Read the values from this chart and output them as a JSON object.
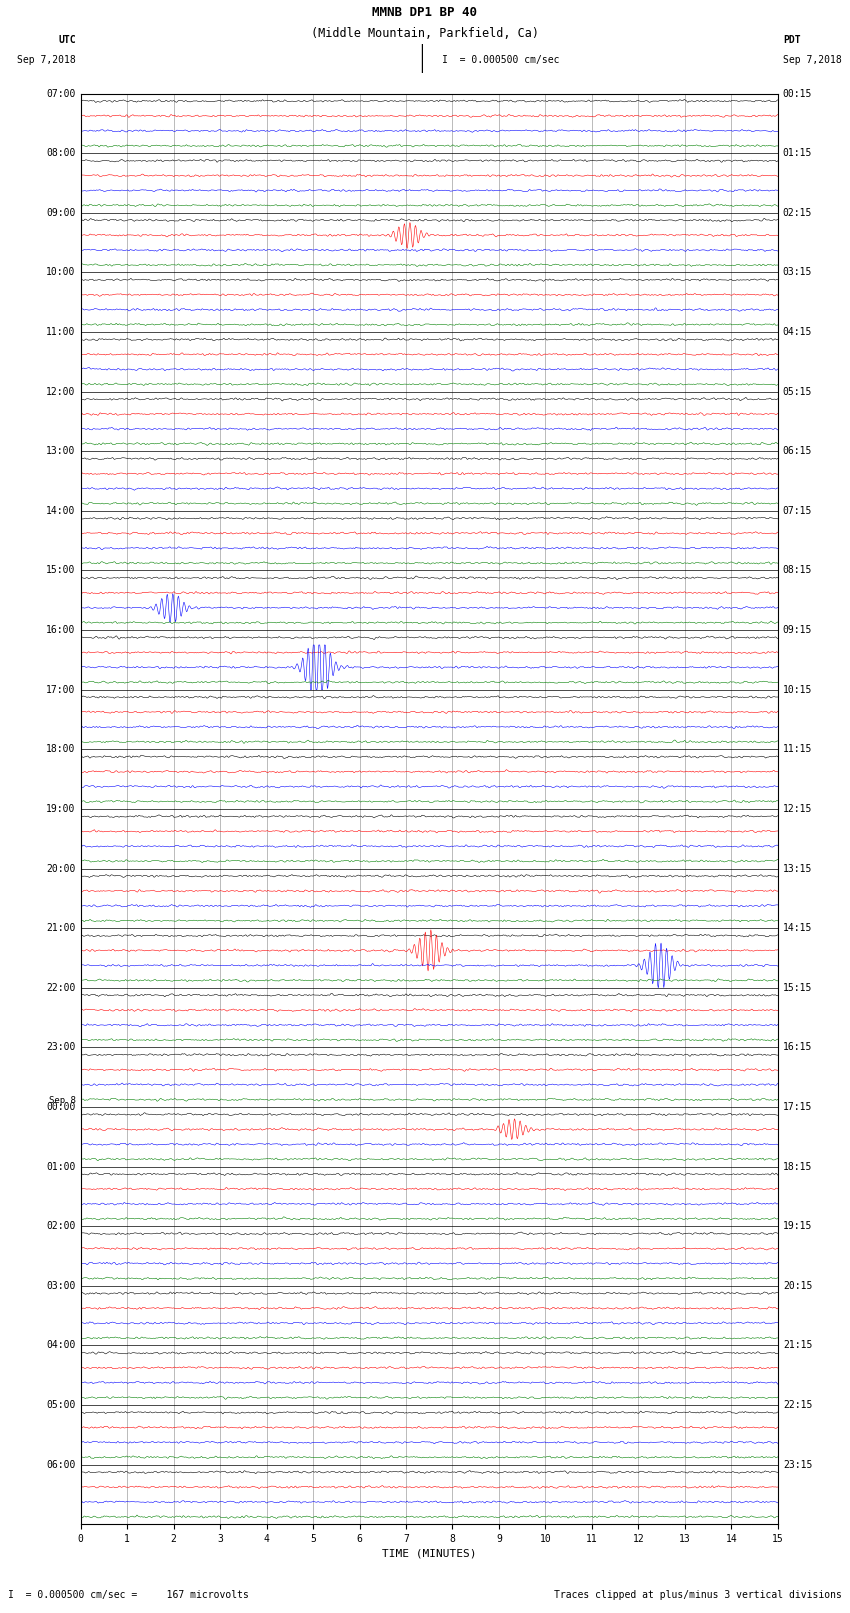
{
  "title_line1": "MMNB DP1 BP 40",
  "title_line2": "(Middle Mountain, Parkfield, Ca)",
  "scale_text": "I  = 0.000500 cm/sec",
  "utc_label": "UTC",
  "pdt_label": "PDT",
  "date_left": "Sep 7,2018",
  "date_right": "Sep 7,2018",
  "xlabel": "TIME (MINUTES)",
  "footer_left": "I  = 0.000500 cm/sec =     167 microvolts",
  "footer_right": "Traces clipped at plus/minus 3 vertical divisions",
  "colors": [
    "black",
    "red",
    "blue",
    "green"
  ],
  "num_rows": 24,
  "traces_per_row": 4,
  "x_ticks": [
    0,
    1,
    2,
    3,
    4,
    5,
    6,
    7,
    8,
    9,
    10,
    11,
    12,
    13,
    14,
    15
  ],
  "utc_times": [
    "07:00",
    "08:00",
    "09:00",
    "10:00",
    "11:00",
    "12:00",
    "13:00",
    "14:00",
    "15:00",
    "16:00",
    "17:00",
    "18:00",
    "19:00",
    "20:00",
    "21:00",
    "22:00",
    "23:00",
    "Sep 8\n00:00",
    "01:00",
    "02:00",
    "03:00",
    "04:00",
    "05:00",
    "06:00"
  ],
  "pdt_times": [
    "00:15",
    "01:15",
    "02:15",
    "03:15",
    "04:15",
    "05:15",
    "06:15",
    "07:15",
    "08:15",
    "09:15",
    "10:15",
    "11:15",
    "12:15",
    "13:15",
    "14:15",
    "15:15",
    "16:15",
    "17:15",
    "18:15",
    "19:15",
    "20:15",
    "21:15",
    "22:15",
    "23:15"
  ],
  "noise_amp": 0.018,
  "fig_width": 8.5,
  "fig_height": 16.13,
  "dpi": 100,
  "bg_color": "white",
  "spine_color": "black",
  "tick_label_size": 7,
  "title_size": 9,
  "footer_size": 7,
  "label_size": 8,
  "lw": 0.4
}
